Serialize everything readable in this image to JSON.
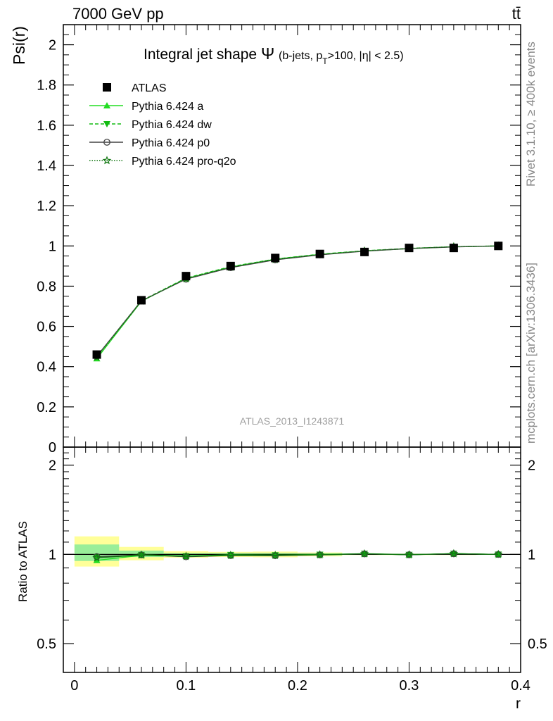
{
  "header": {
    "energy_label": "7000 GeV pp",
    "process_label": "tt̄"
  },
  "side_labels": {
    "rivet": "Rivet 3.1.10, ≥ 400k events",
    "mcplots": "mcplots.cern.ch [arXiv:1306.3436]"
  },
  "chart_data": [
    {
      "type": "scatter",
      "panel": "main",
      "title": "Integral jet shape",
      "title_symbol": "Ψ",
      "title_cuts": "(b-jets, p_T>100, |η| < 2.5)",
      "ylabel": "Psi(r)",
      "watermark": "ATLAS_2013_I1243871",
      "xlim": [
        -0.01,
        0.4
      ],
      "ylim": [
        0,
        2.1
      ],
      "yticks": [
        0,
        0.2,
        0.4,
        0.6,
        0.8,
        1,
        1.2,
        1.4,
        1.6,
        1.8,
        2
      ],
      "ytick_labels": [
        "0",
        "0.2",
        "0.4",
        "0.6",
        "0.8",
        "1",
        "1.2",
        "1.4",
        "1.6",
        "1.8",
        "2"
      ],
      "grid": false,
      "legend_position": "top-left",
      "x": [
        0.02,
        0.06,
        0.1,
        0.14,
        0.18,
        0.22,
        0.26,
        0.3,
        0.34,
        0.38
      ],
      "series": [
        {
          "name": "ATLAS",
          "marker": "square",
          "color": "#000000",
          "values": [
            0.46,
            0.73,
            0.85,
            0.9,
            0.94,
            0.96,
            0.97,
            0.99,
            0.99,
            1.0
          ]
        },
        {
          "name": "Pythia 6.424 a",
          "marker": "triangle-up",
          "line": "solid",
          "color": "#22dd22",
          "values": [
            0.44,
            0.725,
            0.838,
            0.895,
            0.934,
            0.958,
            0.975,
            0.987,
            0.996,
            1.0
          ]
        },
        {
          "name": "Pythia 6.424 dw",
          "marker": "triangle-down",
          "line": "dashed",
          "color": "#11bb11",
          "values": [
            0.45,
            0.728,
            0.84,
            0.897,
            0.935,
            0.959,
            0.976,
            0.988,
            0.996,
            1.0
          ]
        },
        {
          "name": "Pythia 6.424 p0",
          "marker": "circle-open",
          "line": "solid",
          "color": "#444444",
          "values": [
            0.452,
            0.727,
            0.835,
            0.892,
            0.931,
            0.956,
            0.974,
            0.987,
            0.995,
            1.0
          ]
        },
        {
          "name": "Pythia 6.424 pro-q2o",
          "marker": "star-open",
          "line": "dotted",
          "color": "#117711",
          "values": [
            0.448,
            0.726,
            0.837,
            0.894,
            0.933,
            0.957,
            0.975,
            0.987,
            0.996,
            1.0
          ]
        }
      ]
    },
    {
      "type": "scatter",
      "panel": "ratio",
      "ylabel": "Ratio to ATLAS",
      "xlabel": "r",
      "xlim": [
        -0.01,
        0.4
      ],
      "ylim": [
        0.4,
        2.3
      ],
      "log_y": true,
      "yticks": [
        0.5,
        1,
        2
      ],
      "ytick_labels": [
        "0.5",
        "1",
        "2"
      ],
      "xticks": [
        0,
        0.1,
        0.2,
        0.3,
        0.4
      ],
      "xtick_labels": [
        "0",
        "0.1",
        "0.2",
        "0.3",
        "0.4"
      ],
      "x": [
        0.02,
        0.06,
        0.1,
        0.14,
        0.18,
        0.22,
        0.26,
        0.3,
        0.34,
        0.38
      ],
      "bands": {
        "x_edges": [
          0.0,
          0.04,
          0.08,
          0.12,
          0.16,
          0.2,
          0.24,
          0.28,
          0.32,
          0.36,
          0.4
        ],
        "yellow": {
          "color": "#ffff99",
          "lo": [
            0.91,
            0.955,
            0.975,
            0.98,
            0.978,
            0.985,
            0.995,
            0.995,
            0.995,
            0.997
          ],
          "hi": [
            1.15,
            1.06,
            1.025,
            1.02,
            1.022,
            1.015,
            1.005,
            1.005,
            1.005,
            1.003
          ]
        },
        "green": {
          "color": "#99ee99",
          "lo": [
            0.95,
            0.98,
            0.99,
            0.99,
            0.99,
            0.992,
            0.997,
            0.997,
            0.997,
            0.998
          ],
          "hi": [
            1.08,
            1.03,
            1.01,
            1.01,
            1.01,
            1.008,
            1.003,
            1.003,
            1.003,
            1.002
          ]
        }
      },
      "series": [
        {
          "name": "Pythia 6.424 a",
          "marker": "triangle-up",
          "color": "#22dd22",
          "values": [
            0.955,
            0.993,
            0.986,
            0.994,
            0.994,
            0.998,
            1.005,
            0.997,
            1.006,
            1.0
          ]
        },
        {
          "name": "Pythia 6.424 dw",
          "marker": "triangle-down",
          "color": "#11bb11",
          "values": [
            0.978,
            0.997,
            0.988,
            0.997,
            0.995,
            0.999,
            1.006,
            0.998,
            1.006,
            1.0
          ]
        },
        {
          "name": "Pythia 6.424 p0",
          "marker": "circle-open",
          "color": "#444444",
          "values": [
            0.983,
            0.996,
            0.982,
            0.991,
            0.99,
            0.996,
            1.004,
            0.997,
            1.005,
            1.0
          ]
        },
        {
          "name": "Pythia 6.424 pro-q2o",
          "marker": "star-open",
          "color": "#117711",
          "values": [
            0.974,
            0.995,
            0.985,
            0.993,
            0.993,
            0.997,
            1.005,
            0.997,
            1.006,
            1.0
          ]
        }
      ]
    }
  ]
}
